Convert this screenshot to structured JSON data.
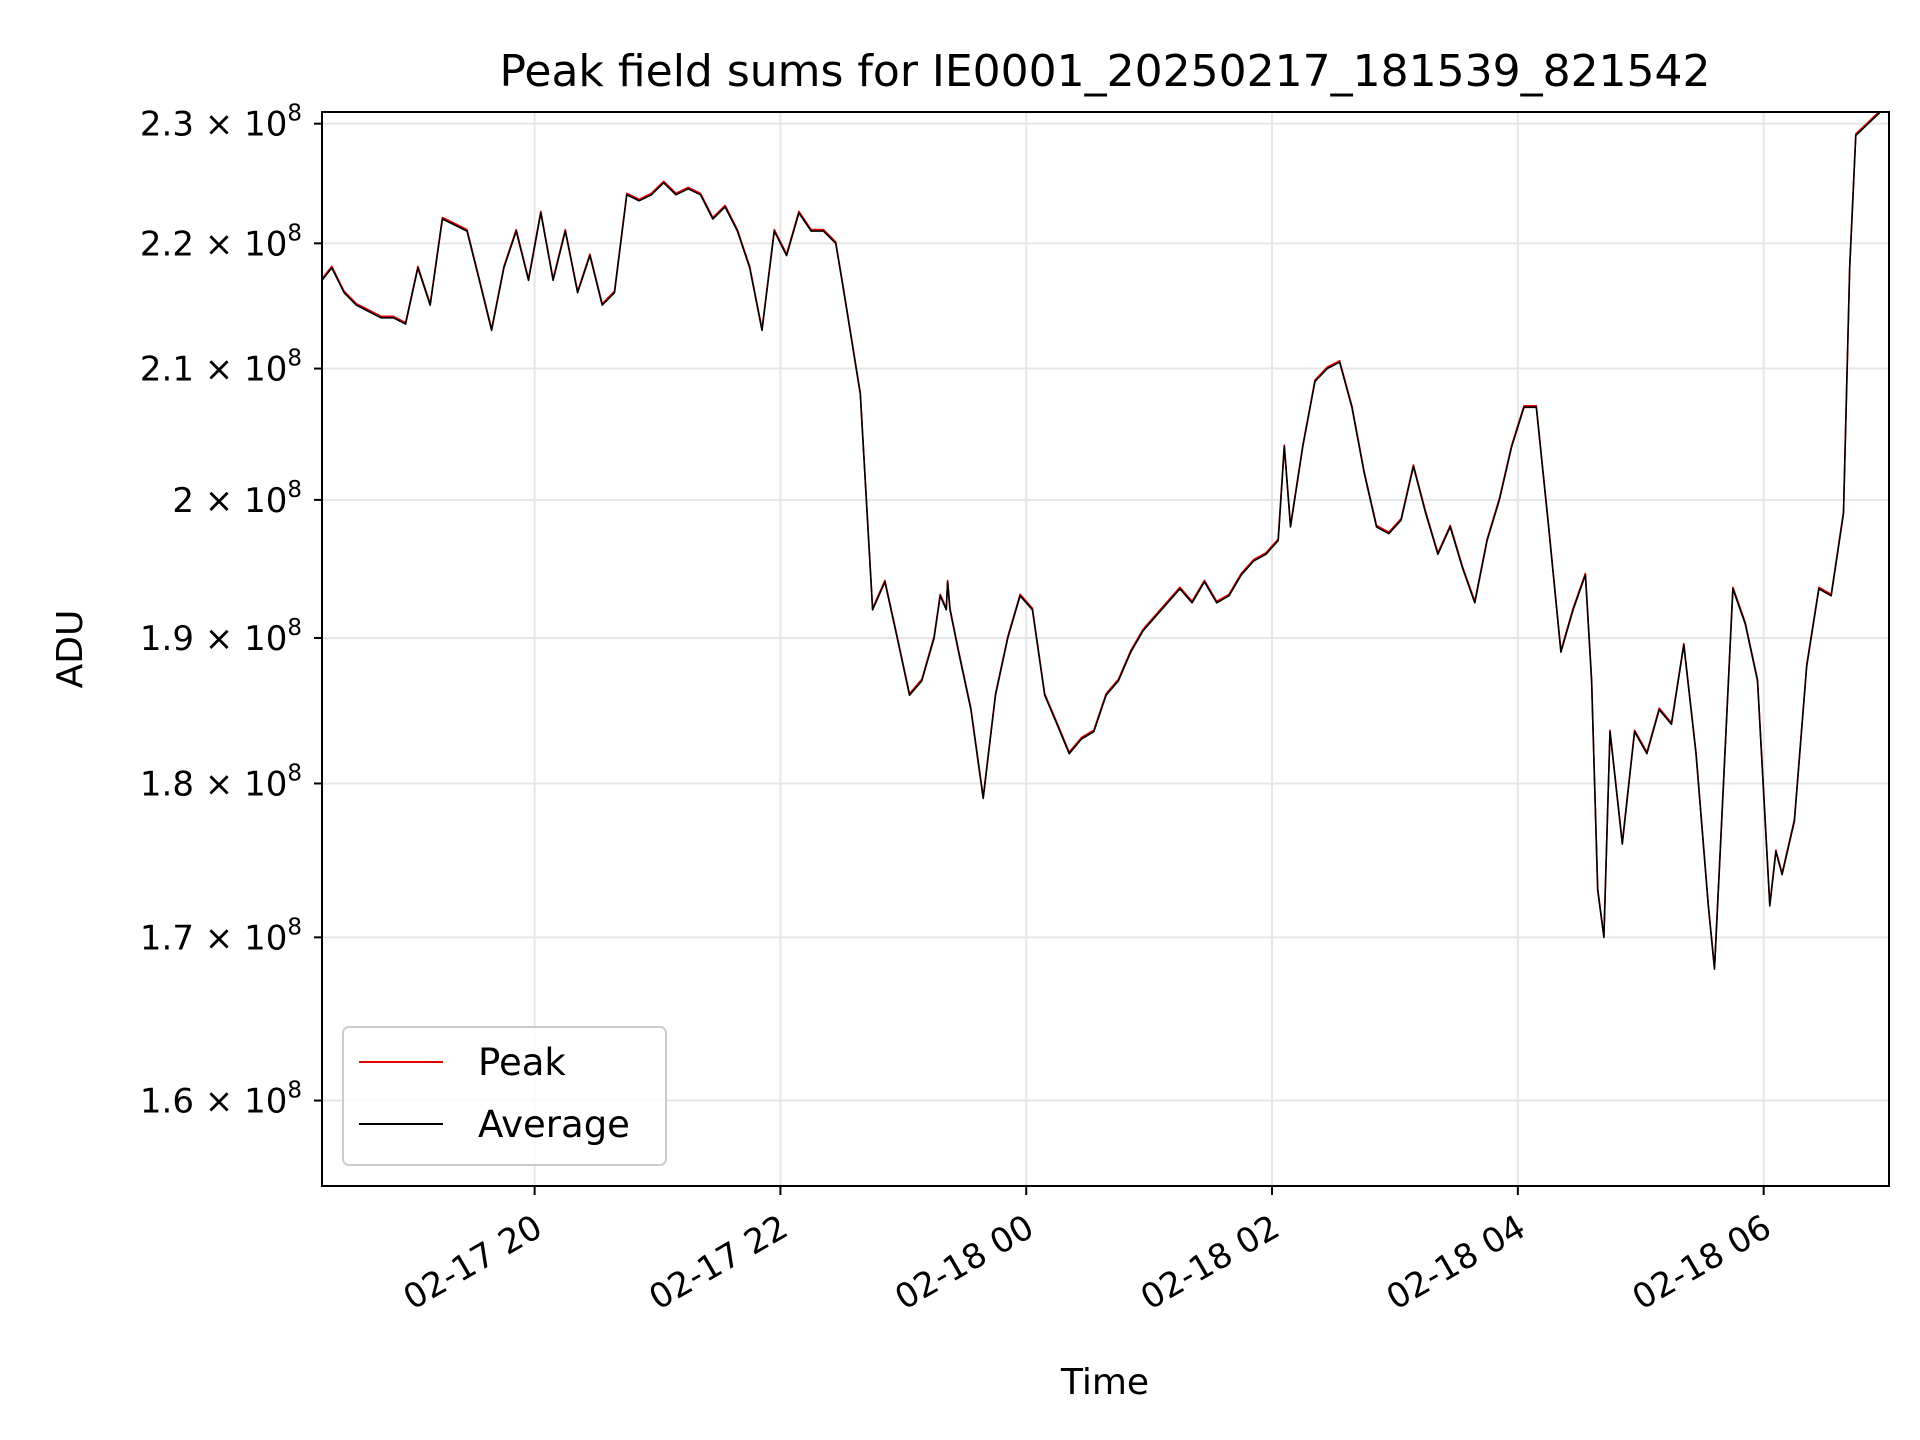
{
  "chart_data": {
    "type": "line",
    "title": "Peak field sums for IE0001_20250217_181539_821542",
    "xlabel": "Time",
    "ylabel": "ADU",
    "x_unit": "hours",
    "xlim": [
      18.27,
      31.02
    ],
    "ylim": [
      155000000,
      231000000
    ],
    "y_scale": "log",
    "grid": true,
    "legend_position": "lower-left",
    "x_ticks": [
      {
        "value": 20,
        "label": "02-17 20"
      },
      {
        "value": 22,
        "label": "02-17 22"
      },
      {
        "value": 24,
        "label": "02-18 00"
      },
      {
        "value": 26,
        "label": "02-18 02"
      },
      {
        "value": 28,
        "label": "02-18 04"
      },
      {
        "value": 30,
        "label": "02-18 06"
      }
    ],
    "y_ticks": [
      {
        "value": 160000000,
        "mantissa": "1.6",
        "exp": "8"
      },
      {
        "value": 170000000,
        "mantissa": "1.7",
        "exp": "8"
      },
      {
        "value": 180000000,
        "mantissa": "1.8",
        "exp": "8"
      },
      {
        "value": 190000000,
        "mantissa": "1.9",
        "exp": "8"
      },
      {
        "value": 200000000,
        "mantissa": "2",
        "exp": "8"
      },
      {
        "value": 210000000,
        "mantissa": "2.1",
        "exp": "8"
      },
      {
        "value": 220000000,
        "mantissa": "2.2",
        "exp": "8"
      },
      {
        "value": 230000000,
        "mantissa": "2.3",
        "exp": "8"
      }
    ],
    "tick_times_symbol": "×",
    "tick_base": "10",
    "series": [
      {
        "name": "Peak",
        "color": "#e00000",
        "line_width": 1.6
      },
      {
        "name": "Average",
        "color": "#000000",
        "line_width": 1.6
      }
    ],
    "x": [
      18.27,
      18.35,
      18.45,
      18.55,
      18.65,
      18.75,
      18.85,
      18.95,
      19.05,
      19.15,
      19.25,
      19.35,
      19.45,
      19.55,
      19.65,
      19.75,
      19.85,
      19.95,
      20.05,
      20.15,
      20.25,
      20.35,
      20.45,
      20.55,
      20.65,
      20.75,
      20.85,
      20.95,
      21.05,
      21.15,
      21.25,
      21.35,
      21.45,
      21.55,
      21.65,
      21.75,
      21.85,
      21.95,
      22.05,
      22.15,
      22.25,
      22.35,
      22.45,
      22.5,
      22.55,
      22.65,
      22.75,
      22.85,
      22.95,
      23.05,
      23.15,
      23.25,
      23.3,
      23.35,
      23.36,
      23.38,
      23.45,
      23.55,
      23.65,
      23.75,
      23.85,
      23.95,
      24.05,
      24.15,
      24.25,
      24.35,
      24.45,
      24.55,
      24.65,
      24.75,
      24.85,
      24.95,
      25.05,
      25.15,
      25.25,
      25.35,
      25.45,
      25.55,
      25.65,
      25.75,
      25.85,
      25.95,
      26.05,
      26.1,
      26.15,
      26.25,
      26.35,
      26.45,
      26.55,
      26.65,
      26.75,
      26.85,
      26.95,
      27.05,
      27.15,
      27.25,
      27.35,
      27.45,
      27.55,
      27.65,
      27.75,
      27.85,
      27.95,
      28.05,
      28.15,
      28.25,
      28.35,
      28.45,
      28.55,
      28.6,
      28.65,
      28.7,
      28.75,
      28.85,
      28.95,
      29.05,
      29.15,
      29.25,
      29.35,
      29.45,
      29.55,
      29.6,
      29.65,
      29.75,
      29.85,
      29.95,
      30.05,
      30.1,
      30.15,
      30.25,
      30.35,
      30.45,
      30.55,
      30.65,
      30.7,
      30.75,
      30.85,
      30.95,
      31.02
    ],
    "values": [
      217000000,
      218000000,
      216000000,
      215000000,
      214500000,
      214000000,
      214000000,
      213500000,
      218000000,
      215000000,
      222000000,
      221500000,
      221000000,
      217000000,
      213000000,
      218000000,
      221000000,
      217000000,
      222500000,
      217000000,
      221000000,
      216000000,
      219000000,
      215000000,
      216000000,
      224000000,
      223500000,
      224000000,
      225000000,
      224000000,
      224500000,
      224000000,
      222000000,
      223000000,
      221000000,
      218000000,
      213000000,
      221000000,
      219000000,
      222500000,
      221000000,
      221000000,
      220000000,
      217000000,
      214000000,
      208000000,
      192000000,
      194000000,
      190000000,
      186000000,
      187000000,
      190000000,
      193000000,
      192000000,
      194000000,
      192000000,
      189000000,
      185000000,
      179000000,
      186000000,
      190000000,
      193000000,
      192000000,
      186000000,
      184000000,
      182000000,
      183000000,
      183500000,
      186000000,
      187000000,
      189000000,
      190500000,
      191500000,
      192500000,
      193500000,
      192500000,
      194000000,
      192500000,
      193000000,
      194500000,
      195500000,
      196000000,
      197000000,
      204000000,
      198000000,
      204000000,
      209000000,
      210000000,
      210500000,
      207000000,
      202000000,
      198000000,
      197500000,
      198500000,
      202500000,
      199000000,
      196000000,
      198000000,
      195000000,
      192500000,
      197000000,
      200000000,
      204000000,
      207000000,
      207000000,
      198000000,
      189000000,
      192000000,
      194500000,
      187000000,
      173000000,
      170000000,
      183500000,
      176000000,
      183500000,
      182000000,
      185000000,
      184000000,
      189500000,
      182000000,
      172000000,
      168000000,
      176000000,
      193500000,
      191000000,
      187000000,
      172000000,
      175500000,
      174000000,
      177500000,
      188000000,
      193500000,
      193000000,
      199000000,
      218000000,
      229000000,
      230000000,
      231000000,
      231000000
    ]
  },
  "legend": {
    "peak_label": "Peak",
    "average_label": "Average"
  }
}
